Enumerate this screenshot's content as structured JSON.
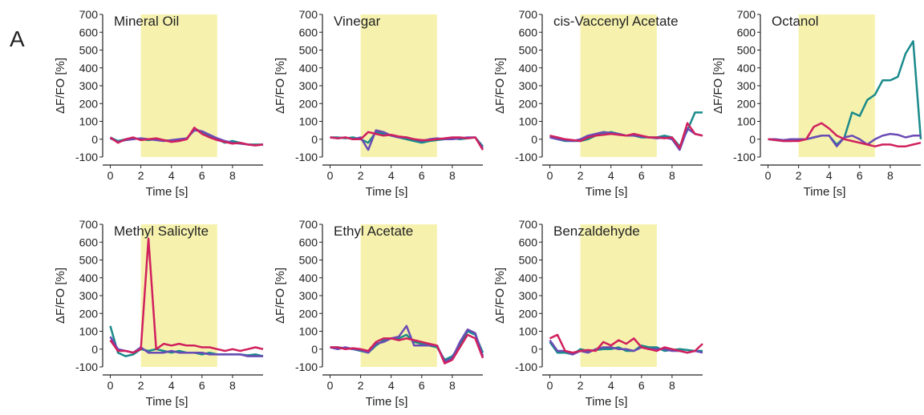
{
  "panel_label": "A",
  "chart_data": [
    {
      "type": "line",
      "title": "Mineral Oil",
      "xlabel": "Time [s]",
      "ylabel": "ΔF/FO [%]",
      "xlim": [
        -0.5,
        10
      ],
      "xticks": [
        0,
        2,
        4,
        6,
        8
      ],
      "ylim": [
        -100,
        700
      ],
      "yticks": [
        -100,
        0,
        100,
        200,
        300,
        400,
        500,
        600,
        700
      ],
      "highlight": [
        2,
        7
      ],
      "highlight_color": "#f6f2ae",
      "x": [
        0,
        0.5,
        1,
        1.5,
        2,
        2.5,
        3,
        3.5,
        4,
        4.5,
        5,
        5.5,
        6,
        6.5,
        7,
        7.5,
        8,
        8.5,
        9,
        9.5,
        10
      ],
      "series": [
        {
          "color": "#1a8a8a",
          "values": [
            10,
            -10,
            0,
            5,
            0,
            -5,
            0,
            -5,
            -10,
            -5,
            0,
            60,
            40,
            20,
            0,
            -20,
            -10,
            -20,
            -30,
            -30,
            -30
          ]
        },
        {
          "color": "#6a4bb5",
          "values": [
            5,
            -15,
            -5,
            0,
            5,
            0,
            -5,
            -10,
            -5,
            0,
            5,
            50,
            45,
            25,
            5,
            -10,
            -20,
            -25,
            -30,
            -35,
            -30
          ]
        },
        {
          "color": "#d0205e",
          "values": [
            10,
            -20,
            0,
            10,
            -5,
            0,
            5,
            -5,
            -15,
            -10,
            0,
            65,
            30,
            10,
            -5,
            -15,
            -25,
            -20,
            -30,
            -35,
            -30
          ]
        }
      ]
    },
    {
      "type": "line",
      "title": "Vinegar",
      "xlabel": "Time [s]",
      "ylabel": "ΔF/FO [%]",
      "xlim": [
        -0.5,
        10
      ],
      "xticks": [
        0,
        2,
        4,
        6,
        8
      ],
      "ylim": [
        -100,
        700
      ],
      "yticks": [
        -100,
        0,
        100,
        200,
        300,
        400,
        500,
        600,
        700
      ],
      "highlight": [
        2,
        7
      ],
      "highlight_color": "#f6f2ae",
      "x": [
        0,
        0.5,
        1,
        1.5,
        2,
        2.5,
        3,
        3.5,
        4,
        4.5,
        5,
        5.5,
        6,
        6.5,
        7,
        7.5,
        8,
        8.5,
        9,
        9.5,
        10
      ],
      "series": [
        {
          "color": "#1a8a8a",
          "values": [
            10,
            10,
            5,
            10,
            0,
            -20,
            40,
            30,
            20,
            10,
            0,
            -10,
            -20,
            -10,
            -5,
            0,
            5,
            0,
            5,
            10,
            -40
          ]
        },
        {
          "color": "#6a4bb5",
          "values": [
            10,
            5,
            10,
            0,
            10,
            -60,
            50,
            40,
            20,
            10,
            10,
            0,
            -10,
            0,
            5,
            0,
            0,
            5,
            10,
            10,
            -50
          ]
        },
        {
          "color": "#d0205e",
          "values": [
            10,
            5,
            10,
            0,
            0,
            40,
            30,
            20,
            25,
            15,
            10,
            0,
            -5,
            -5,
            0,
            5,
            10,
            10,
            5,
            10,
            -60
          ]
        }
      ]
    },
    {
      "type": "line",
      "title": "cis-Vaccenyl Acetate",
      "xlabel": "Time [s]",
      "ylabel": "ΔF/FO [%]",
      "xlim": [
        -0.5,
        10
      ],
      "xticks": [
        0,
        2,
        4,
        6,
        8
      ],
      "ylim": [
        -100,
        700
      ],
      "yticks": [
        -100,
        0,
        100,
        200,
        300,
        400,
        500,
        600,
        700
      ],
      "highlight": [
        2,
        7
      ],
      "highlight_color": "#f6f2ae",
      "x": [
        0,
        0.5,
        1,
        1.5,
        2,
        2.5,
        3,
        3.5,
        4,
        4.5,
        5,
        5.5,
        6,
        6.5,
        7,
        7.5,
        8,
        8.5,
        9,
        9.5,
        10
      ],
      "series": [
        {
          "color": "#1a8a8a",
          "values": [
            20,
            0,
            -10,
            -10,
            -10,
            0,
            20,
            30,
            40,
            30,
            20,
            20,
            10,
            10,
            10,
            20,
            10,
            -40,
            50,
            150,
            150
          ]
        },
        {
          "color": "#6a4bb5",
          "values": [
            10,
            0,
            -5,
            -10,
            0,
            20,
            30,
            40,
            35,
            30,
            20,
            20,
            15,
            10,
            5,
            10,
            0,
            -60,
            60,
            30,
            20
          ]
        },
        {
          "color": "#d0205e",
          "values": [
            20,
            10,
            0,
            -5,
            -10,
            10,
            20,
            25,
            30,
            25,
            20,
            30,
            20,
            10,
            10,
            5,
            10,
            -50,
            90,
            30,
            20
          ]
        }
      ]
    },
    {
      "type": "line",
      "title": "Octanol",
      "xlabel": "Time [s]",
      "ylabel": "ΔF/FO [%]",
      "xlim": [
        -0.5,
        10
      ],
      "xticks": [
        0,
        2,
        4,
        6,
        8
      ],
      "ylim": [
        -100,
        700
      ],
      "yticks": [
        -100,
        0,
        100,
        200,
        300,
        400,
        500,
        600,
        700
      ],
      "highlight": [
        2,
        7
      ],
      "highlight_color": "#f6f2ae",
      "x": [
        0,
        0.5,
        1,
        1.5,
        2,
        2.5,
        3,
        3.5,
        4,
        4.5,
        5,
        5.5,
        6,
        6.5,
        7,
        7.5,
        8,
        8.5,
        9,
        9.5,
        10
      ],
      "series": [
        {
          "color": "#1a8a8a",
          "values": [
            0,
            -5,
            -10,
            -10,
            0,
            0,
            10,
            20,
            20,
            -30,
            10,
            150,
            130,
            220,
            250,
            330,
            330,
            350,
            480,
            550,
            0
          ]
        },
        {
          "color": "#6a4bb5",
          "values": [
            0,
            0,
            -5,
            0,
            0,
            0,
            10,
            20,
            20,
            -40,
            10,
            20,
            0,
            -30,
            0,
            20,
            30,
            25,
            10,
            20,
            20
          ]
        },
        {
          "color": "#d0205e",
          "values": [
            0,
            -5,
            -10,
            -10,
            -10,
            0,
            70,
            90,
            60,
            20,
            0,
            -10,
            -20,
            -30,
            -40,
            -30,
            -30,
            -40,
            -40,
            -30,
            -20
          ]
        }
      ]
    },
    {
      "type": "line",
      "title": "Methyl Salicylte",
      "xlabel": "Time [s]",
      "ylabel": "ΔF/FO [%]",
      "xlim": [
        -0.5,
        10
      ],
      "xticks": [
        0,
        2,
        4,
        6,
        8
      ],
      "ylim": [
        -100,
        700
      ],
      "yticks": [
        -100,
        0,
        100,
        200,
        300,
        400,
        500,
        600,
        700
      ],
      "highlight": [
        2,
        7
      ],
      "highlight_color": "#f6f2ae",
      "x": [
        0,
        0.5,
        1,
        1.5,
        2,
        2.5,
        3,
        3.5,
        4,
        4.5,
        5,
        5.5,
        6,
        6.5,
        7,
        7.5,
        8,
        8.5,
        9,
        9.5,
        10
      ],
      "series": [
        {
          "color": "#1a8a8a",
          "values": [
            130,
            -20,
            -40,
            -30,
            0,
            -10,
            0,
            -10,
            -20,
            -10,
            -20,
            -20,
            -30,
            -20,
            -30,
            -30,
            -30,
            -30,
            -35,
            -30,
            -40
          ]
        },
        {
          "color": "#6a4bb5",
          "values": [
            70,
            0,
            -10,
            -20,
            10,
            -20,
            -20,
            -20,
            -10,
            -20,
            -20,
            -20,
            -20,
            -30,
            -30,
            -30,
            -30,
            -30,
            -40,
            -40,
            -40
          ]
        },
        {
          "color": "#d0205e",
          "values": [
            50,
            -10,
            -10,
            -20,
            0,
            620,
            0,
            30,
            20,
            30,
            20,
            20,
            10,
            10,
            0,
            -10,
            0,
            -10,
            0,
            10,
            0
          ]
        }
      ]
    },
    {
      "type": "line",
      "title": "Ethyl Acetate",
      "xlabel": "Time [s]",
      "ylabel": "ΔF/FO [%]",
      "xlim": [
        -0.5,
        10
      ],
      "xticks": [
        0,
        2,
        4,
        6,
        8
      ],
      "ylim": [
        -100,
        700
      ],
      "yticks": [
        -100,
        0,
        100,
        200,
        300,
        400,
        500,
        600,
        700
      ],
      "highlight": [
        2,
        7
      ],
      "highlight_color": "#f6f2ae",
      "x": [
        0,
        0.5,
        1,
        1.5,
        2,
        2.5,
        3,
        3.5,
        4,
        4.5,
        5,
        5.5,
        6,
        6.5,
        7,
        7.5,
        8,
        8.5,
        9,
        9.5,
        10
      ],
      "series": [
        {
          "color": "#1a8a8a",
          "values": [
            10,
            10,
            5,
            0,
            -10,
            -20,
            20,
            50,
            60,
            60,
            80,
            40,
            30,
            20,
            10,
            -60,
            -40,
            20,
            100,
            80,
            -20
          ]
        },
        {
          "color": "#6a4bb5",
          "values": [
            10,
            0,
            10,
            0,
            -5,
            -20,
            30,
            40,
            60,
            70,
            130,
            20,
            20,
            20,
            20,
            -70,
            -50,
            40,
            110,
            90,
            -40
          ]
        },
        {
          "color": "#d0205e",
          "values": [
            10,
            10,
            0,
            5,
            0,
            -10,
            40,
            60,
            60,
            50,
            60,
            50,
            40,
            30,
            20,
            -80,
            -60,
            10,
            80,
            60,
            -50
          ]
        }
      ]
    },
    {
      "type": "line",
      "title": "Benzaldehyde",
      "xlabel": "Time [s]",
      "ylabel": "ΔF/FO [%]",
      "xlim": [
        -0.5,
        10
      ],
      "xticks": [
        0,
        2,
        4,
        6,
        8
      ],
      "ylim": [
        -100,
        700
      ],
      "yticks": [
        -100,
        0,
        100,
        200,
        300,
        400,
        500,
        600,
        700
      ],
      "highlight": [
        2,
        7
      ],
      "highlight_color": "#f6f2ae",
      "x": [
        0,
        0.5,
        1,
        1.5,
        2,
        2.5,
        3,
        3.5,
        4,
        4.5,
        5,
        5.5,
        6,
        6.5,
        7,
        7.5,
        8,
        8.5,
        9,
        9.5,
        10
      ],
      "series": [
        {
          "color": "#1a8a8a",
          "values": [
            40,
            -20,
            -20,
            -30,
            0,
            -10,
            -5,
            0,
            0,
            10,
            -10,
            -10,
            20,
            10,
            10,
            -10,
            -5,
            0,
            -5,
            -10,
            -10
          ]
        },
        {
          "color": "#6a4bb5",
          "values": [
            50,
            -10,
            -10,
            -30,
            -10,
            -20,
            0,
            10,
            10,
            0,
            0,
            -10,
            10,
            0,
            0,
            0,
            -10,
            -10,
            -20,
            -10,
            -20
          ]
        },
        {
          "color": "#d0205e",
          "values": [
            60,
            80,
            -10,
            -20,
            -10,
            -5,
            -10,
            40,
            20,
            50,
            30,
            60,
            10,
            0,
            -10,
            10,
            0,
            -10,
            -20,
            -10,
            30
          ]
        }
      ]
    }
  ]
}
